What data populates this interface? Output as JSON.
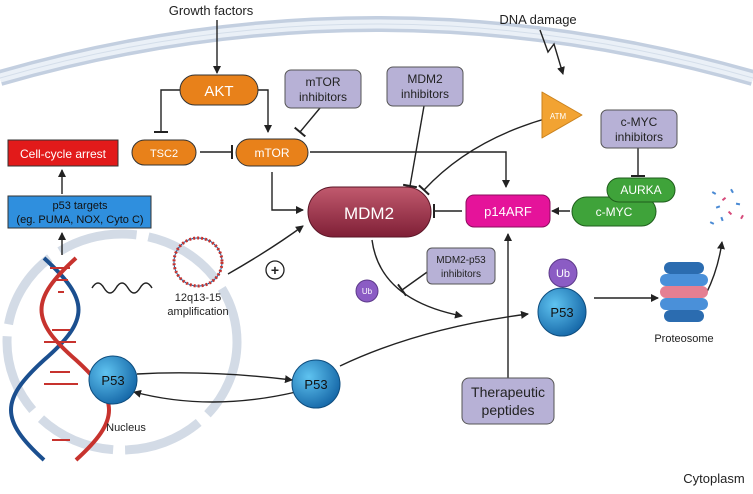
{
  "labels": {
    "growth_factors": "Growth factors",
    "dna_damage": "DNA damage",
    "akt": "AKT",
    "mtor_inhibitors_1": "mTOR",
    "mtor_inhibitors_2": "inhibitors",
    "mdm2_inhibitors_1": "MDM2",
    "mdm2_inhibitors_2": "inhibitors",
    "atm": "ATM",
    "cmyc_inhibitors_1": "c-MYC",
    "cmyc_inhibitors_2": "inhibitors",
    "cell_cycle_arrest": "Cell-cycle arrest",
    "tsc2": "TSC2",
    "mtor": "mTOR",
    "p53_targets_1": "p53 targets",
    "p53_targets_2": "(eg. PUMA, NOX, Cyto C)",
    "mdm2": "MDM2",
    "p14arf": "p14ARF",
    "aurka": "AURKA",
    "cmyc": "c-MYC",
    "amplification_1": "12q13-15",
    "amplification_2": "amplification",
    "plus": "+",
    "mdm2_p53_inhibitors_1": "MDM2-p53",
    "mdm2_p53_inhibitors_2": "inhibitors",
    "ub_left": "Ub",
    "ub_right": "Ub",
    "p53_right": "P53",
    "p53_middle": "P53",
    "p53_nucleus": "P53",
    "proteosome": "Proteosome",
    "therapeutic_peptides_1": "Therapeutic",
    "therapeutic_peptides_2": "peptides",
    "nucleus": "Nucleus",
    "cytoplasm": "Cytoplasm"
  },
  "colors": {
    "orange": "#e8811a",
    "lavender": "#b7b1d6",
    "red": "#e21a1a",
    "blue_box": "#2f8fde",
    "mdm2": "#9b2f47",
    "p14arf": "#e5139a",
    "green": "#3fa33a",
    "atm": "#f2a332",
    "p53": "#1f8cc9",
    "ub": "#8b5cc4",
    "membrane": "#cfd8e6"
  }
}
